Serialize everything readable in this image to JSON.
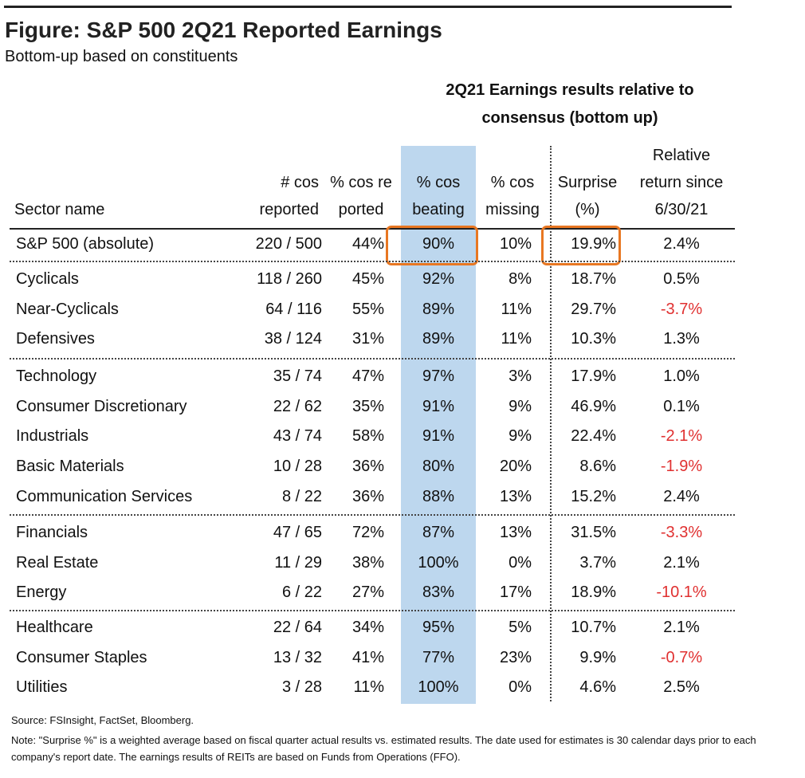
{
  "header": {
    "title": "Figure: S&P 500 2Q21 Reported Earnings",
    "subtitle": "Bottom-up based on constituents"
  },
  "table": {
    "group_header": "2Q21 Earnings results relative to consensus (bottom up)",
    "columns": [
      "Sector name",
      "# cos reported",
      "% cos reported",
      "% cos beating",
      "% cos missing",
      "Surprise (%)",
      "Relative return since 6/30/21"
    ],
    "groups": [
      [
        [
          "S&P 500 (absolute)",
          "220 / 500",
          "44%",
          "90%",
          "10%",
          "19.9%",
          "2.4%"
        ]
      ],
      [
        [
          "Cyclicals",
          "118 / 260",
          "45%",
          "92%",
          "8%",
          "18.7%",
          "0.5%"
        ],
        [
          "Near-Cyclicals",
          "64 / 116",
          "55%",
          "89%",
          "11%",
          "29.7%",
          "-3.7%"
        ],
        [
          "Defensives",
          "38 / 124",
          "31%",
          "89%",
          "11%",
          "10.3%",
          "1.3%"
        ]
      ],
      [
        [
          "Technology",
          "35 / 74",
          "47%",
          "97%",
          "3%",
          "17.9%",
          "1.0%"
        ],
        [
          "Consumer Discretionary",
          "22 / 62",
          "35%",
          "91%",
          "9%",
          "46.9%",
          "0.1%"
        ],
        [
          "Industrials",
          "43 / 74",
          "58%",
          "91%",
          "9%",
          "22.4%",
          "-2.1%"
        ],
        [
          "Basic Materials",
          "10 / 28",
          "36%",
          "80%",
          "20%",
          "8.6%",
          "-1.9%"
        ],
        [
          "Communication Services",
          "8 / 22",
          "36%",
          "88%",
          "13%",
          "15.2%",
          "2.4%"
        ]
      ],
      [
        [
          "Financials",
          "47 / 65",
          "72%",
          "87%",
          "13%",
          "31.5%",
          "-3.3%"
        ],
        [
          "Real Estate",
          "11 / 29",
          "38%",
          "100%",
          "0%",
          "3.7%",
          "2.1%"
        ],
        [
          "Energy",
          "6 / 22",
          "27%",
          "83%",
          "17%",
          "18.9%",
          "-10.1%"
        ]
      ],
      [
        [
          "Healthcare",
          "22 / 64",
          "34%",
          "95%",
          "5%",
          "10.7%",
          "2.1%"
        ],
        [
          "Consumer Staples",
          "13 / 32",
          "41%",
          "77%",
          "23%",
          "9.9%",
          "-0.7%"
        ],
        [
          "Utilities",
          "3 / 28",
          "11%",
          "100%",
          "0%",
          "4.6%",
          "2.5%"
        ]
      ]
    ]
  },
  "footer": {
    "source": "Source: FSInsight, FactSet, Bloomberg.",
    "note": "Note: \"Surprise %\" is a weighted average based on fiscal quarter actual results vs. estimated results.  The date used for estimates is 30 calendar days prior to each company's report date. The earnings results of REITs are based on Funds from Operations (FFO)."
  }
}
